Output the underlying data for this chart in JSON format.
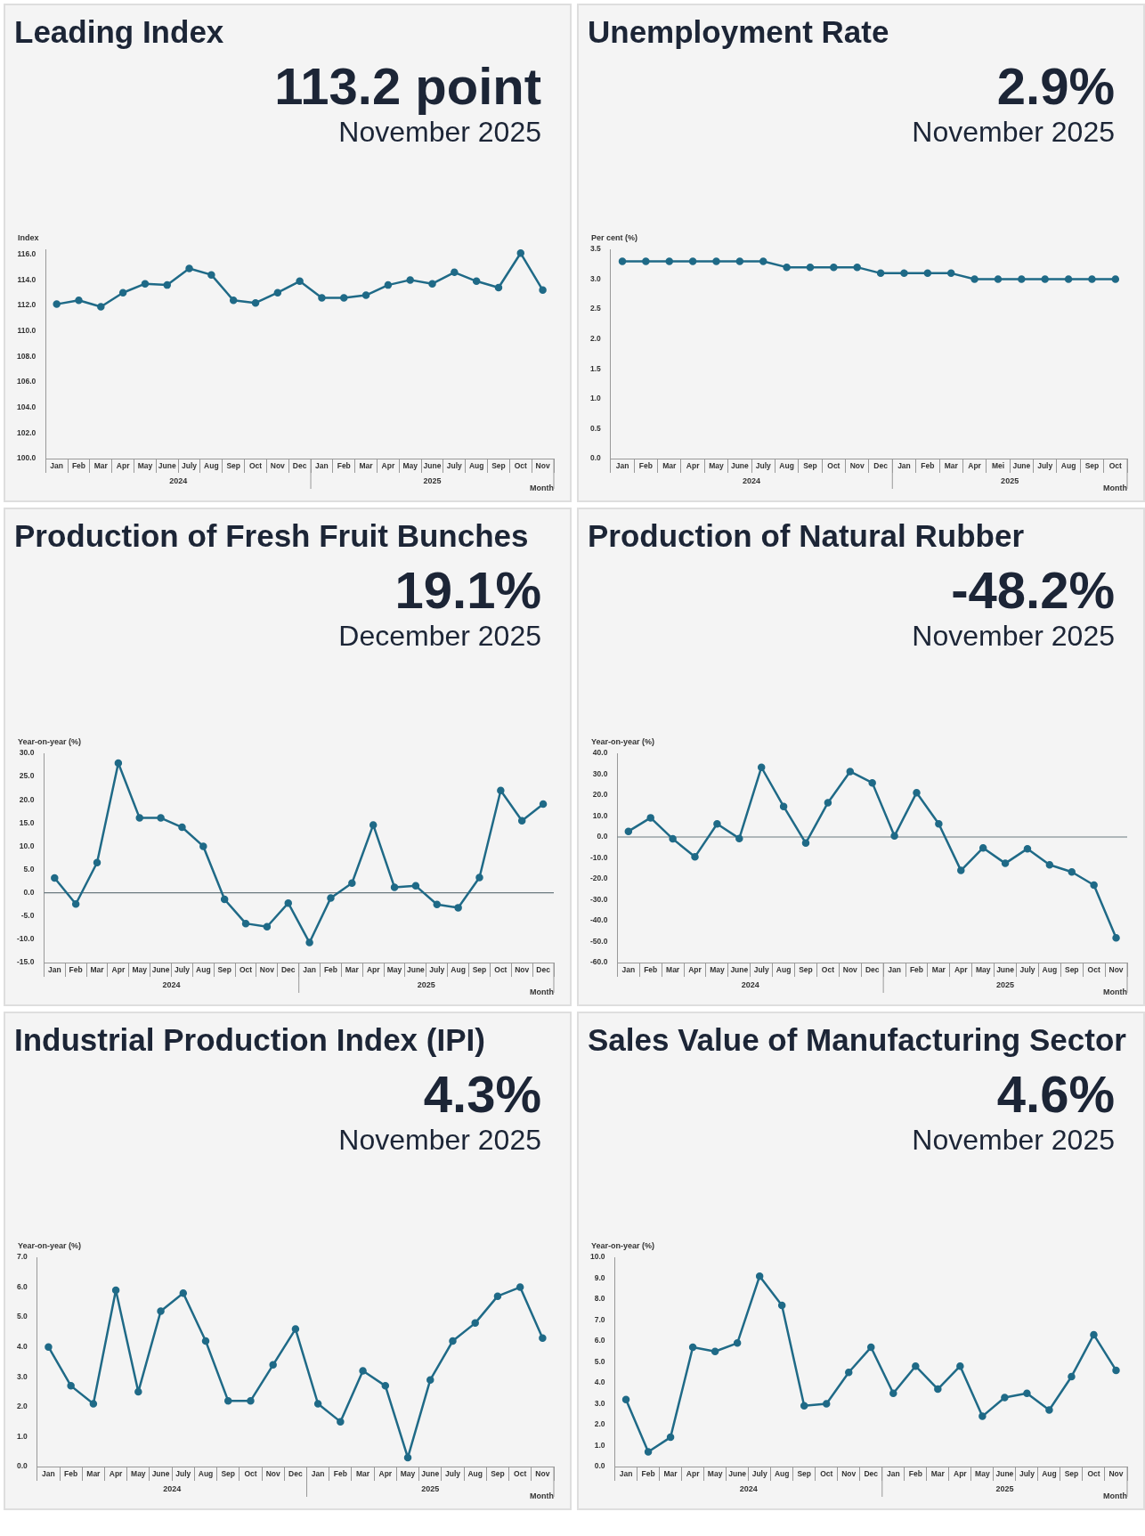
{
  "chart_data": [
    {
      "type": "line",
      "title": "Leading Index",
      "subtitle": "113.2 point",
      "annotations": [
        "November 2025",
        "2024",
        "2025"
      ],
      "xlabel": "Month",
      "ylabel": "Index",
      "marker": "circle",
      "color": "#1f6a87",
      "categories": [
        "Jan",
        "Feb",
        "Mar",
        "Apr",
        "May",
        "June",
        "July",
        "Aug",
        "Sep",
        "Oct",
        "Nov",
        "Dec",
        "Jan",
        "Feb",
        "Mar",
        "Apr",
        "May",
        "June",
        "July",
        "Aug",
        "Sep",
        "Oct",
        "Nov"
      ],
      "values": [
        112.1,
        112.4,
        111.9,
        113.0,
        113.7,
        113.6,
        114.9,
        114.4,
        112.4,
        112.2,
        113.0,
        113.9,
        112.6,
        112.6,
        112.8,
        113.6,
        114.0,
        113.7,
        114.6,
        113.9,
        113.4,
        116.1,
        113.2
      ],
      "ylim": [
        100,
        116.4
      ],
      "yticks": [
        {
          "value": 100,
          "label": "100.0"
        },
        {
          "value": 102,
          "label": "102.0"
        },
        {
          "value": 104,
          "label": "104.0"
        },
        {
          "value": 106,
          "label": "106.0"
        },
        {
          "value": 108,
          "label": "108.0"
        },
        {
          "value": 110,
          "label": "110.0"
        },
        {
          "value": 112,
          "label": "112.0"
        },
        {
          "value": 114,
          "label": "114.0"
        },
        {
          "value": 116,
          "label": "116.0"
        }
      ]
    },
    {
      "type": "line",
      "title": "Unemployment Rate",
      "subtitle": "2.9%",
      "annotations": [
        "November 2025",
        "2024",
        "2025"
      ],
      "xlabel": "Month",
      "ylabel": "Per cent (%)",
      "marker": "circle",
      "color": "#1f6a87",
      "categories": [
        "Jan",
        "Feb",
        "Mar",
        "Apr",
        "May",
        "June",
        "July",
        "Aug",
        "Sep",
        "Oct",
        "Nov",
        "Dec",
        "Jan",
        "Feb",
        "Mar",
        "Apr",
        "Mei",
        "June",
        "July",
        "Aug",
        "Sep",
        "Oct"
      ],
      "values": [
        3.3,
        3.3,
        3.3,
        3.3,
        3.3,
        3.3,
        3.3,
        3.2,
        3.2,
        3.2,
        3.2,
        3.1,
        3.1,
        3.1,
        3.1,
        3.0,
        3.0,
        3.0,
        3.0,
        3.0,
        3.0,
        3.0
      ],
      "ylim": [
        0,
        3.5
      ],
      "yticks": [
        {
          "value": 0,
          "label": "0.0"
        },
        0.5,
        {
          "value": 1,
          "label": "1.0"
        },
        1.5,
        {
          "value": 2,
          "label": "2.0"
        },
        2.5,
        {
          "value": 3,
          "label": "3.0"
        },
        3.5
      ]
    },
    {
      "type": "line",
      "title": "Production of Fresh Fruit Bunches",
      "subtitle": "19.1%",
      "annotations": [
        "December 2025",
        "2024",
        "2025"
      ],
      "xlabel": "Month",
      "ylabel": "Year-on-year (%)",
      "marker": "circle",
      "color": "#1f6a87",
      "categories": [
        "Jan",
        "Feb",
        "Mar",
        "Apr",
        "May",
        "June",
        "July",
        "Aug",
        "Sep",
        "Oct",
        "Nov",
        "Dec",
        "Jan",
        "Feb",
        "Mar",
        "Apr",
        "May",
        "June",
        "July",
        "Aug",
        "Sep",
        "Oct",
        "Nov",
        "Dec"
      ],
      "values": [
        3.2,
        -2.4,
        6.5,
        27.9,
        16.1,
        16.1,
        14.1,
        10.0,
        -1.4,
        -6.6,
        -7.3,
        -2.2,
        -10.7,
        -1.1,
        2.1,
        14.6,
        1.2,
        1.5,
        -2.5,
        -3.2,
        3.3,
        22.0,
        15.5,
        19.1
      ],
      "ylim": [
        -15,
        30
      ],
      "yticks": [
        {
          "value": -15,
          "label": "-15.0"
        },
        {
          "value": -10,
          "label": "-10.0"
        },
        {
          "value": -5,
          "label": "-5.0"
        },
        {
          "value": 0,
          "label": "0.0"
        },
        {
          "value": 5,
          "label": "5.0"
        },
        {
          "value": 10,
          "label": "10.0"
        },
        {
          "value": 15,
          "label": "15.0"
        },
        {
          "value": 20,
          "label": "20.0"
        },
        {
          "value": 25,
          "label": "25.0"
        },
        {
          "value": 30,
          "label": "30.0"
        }
      ],
      "ref_lines": [
        {
          "axis": "y",
          "value": 0,
          "color": "#6b7a80"
        }
      ]
    },
    {
      "type": "line",
      "title": "Production of Natural Rubber",
      "subtitle": "-48.2%",
      "annotations": [
        "November 2025",
        "2024",
        "2025"
      ],
      "xlabel": "Month",
      "ylabel": "Year-on-year (%)",
      "marker": "circle",
      "color": "#1f6a87",
      "categories": [
        "Jan",
        "Feb",
        "Mar",
        "Apr",
        "May",
        "June",
        "July",
        "Aug",
        "Sep",
        "Oct",
        "Nov",
        "Dec",
        "Jan",
        "Feb",
        "Mar",
        "Apr",
        "May",
        "June",
        "July",
        "Aug",
        "Sep",
        "Oct",
        "Nov"
      ],
      "values": [
        2.7,
        9.2,
        -0.9,
        -9.5,
        6.3,
        -0.7,
        33.3,
        14.6,
        -2.9,
        16.4,
        31.3,
        25.9,
        0.5,
        21.2,
        6.3,
        -16.0,
        -5.2,
        -12.6,
        -5.6,
        -13.3,
        -16.7,
        -23.0,
        -48.2
      ],
      "ylim": [
        -60,
        40
      ],
      "yticks": [
        {
          "value": -60,
          "label": "-60.0"
        },
        {
          "value": -50,
          "label": "-50.0"
        },
        {
          "value": -40,
          "label": "-40.0"
        },
        {
          "value": -30,
          "label": "-30.0"
        },
        {
          "value": -20,
          "label": "-20.0"
        },
        {
          "value": -10,
          "label": "-10.0"
        },
        {
          "value": 0,
          "label": "0.0"
        },
        {
          "value": 10,
          "label": "10.0"
        },
        {
          "value": 20,
          "label": "20.0"
        },
        {
          "value": 30,
          "label": "30.0"
        },
        {
          "value": 40,
          "label": "40.0"
        }
      ],
      "ref_lines": [
        {
          "axis": "y",
          "value": 0,
          "color": "#6b7a80"
        }
      ]
    },
    {
      "type": "line",
      "title": "Industrial Production Index (IPI)",
      "subtitle": "4.3%",
      "annotations": [
        "November 2025",
        "2024",
        "2025"
      ],
      "xlabel": "Month",
      "ylabel": "Year-on-year (%)",
      "marker": "circle",
      "color": "#1f6a87",
      "categories": [
        "Jan",
        "Feb",
        "Mar",
        "Apr",
        "May",
        "June",
        "July",
        "Aug",
        "Sep",
        "Oct",
        "Nov",
        "Dec",
        "Jan",
        "Feb",
        "Mar",
        "Apr",
        "May",
        "June",
        "July",
        "Aug",
        "Sep",
        "Oct",
        "Nov"
      ],
      "values": [
        4.0,
        2.7,
        2.1,
        5.9,
        2.5,
        5.2,
        5.8,
        4.2,
        2.2,
        2.2,
        3.4,
        4.6,
        2.1,
        1.5,
        3.2,
        2.7,
        0.3,
        2.9,
        4.2,
        4.8,
        5.7,
        6.0,
        4.3
      ],
      "ylim": [
        0,
        7
      ],
      "yticks": [
        {
          "value": 0,
          "label": "0.0"
        },
        {
          "value": 1,
          "label": "1.0"
        },
        {
          "value": 2,
          "label": "2.0"
        },
        {
          "value": 3,
          "label": "3.0"
        },
        {
          "value": 4,
          "label": "4.0"
        },
        {
          "value": 5,
          "label": "5.0"
        },
        {
          "value": 6,
          "label": "6.0"
        },
        {
          "value": 7,
          "label": "7.0"
        }
      ]
    },
    {
      "type": "line",
      "title": "Sales Value of Manufacturing Sector",
      "subtitle": "4.6%",
      "annotations": [
        "November 2025",
        "2024",
        "2025"
      ],
      "xlabel": "Month",
      "ylabel": "Year-on-year (%)",
      "marker": "circle",
      "color": "#1f6a87",
      "categories": [
        "Jan",
        "Feb",
        "Mar",
        "Apr",
        "May",
        "June",
        "July",
        "Aug",
        "Sep",
        "Oct",
        "Nov",
        "Dec",
        "Jan",
        "Feb",
        "Mar",
        "Apr",
        "May",
        "June",
        "July",
        "Aug",
        "Sep",
        "Oct",
        "Nov"
      ],
      "values": [
        3.2,
        0.7,
        1.4,
        5.7,
        5.5,
        5.9,
        9.1,
        7.7,
        2.9,
        3.0,
        4.5,
        5.7,
        3.5,
        4.8,
        3.7,
        4.8,
        2.4,
        3.3,
        3.5,
        2.7,
        4.3,
        6.3,
        4.6
      ],
      "ylim": [
        0,
        10
      ],
      "yticks": [
        {
          "value": 0,
          "label": "0.0"
        },
        {
          "value": 1,
          "label": "1.0"
        },
        {
          "value": 2,
          "label": "2.0"
        },
        {
          "value": 3,
          "label": "3.0"
        },
        {
          "value": 4,
          "label": "4.0"
        },
        {
          "value": 5,
          "label": "5.0"
        },
        {
          "value": 6,
          "label": "6.0"
        },
        {
          "value": 7,
          "label": "7.0"
        },
        {
          "value": 8,
          "label": "8.0"
        },
        {
          "value": 9,
          "label": "9.0"
        },
        {
          "value": 10,
          "label": "10.0"
        }
      ]
    }
  ]
}
